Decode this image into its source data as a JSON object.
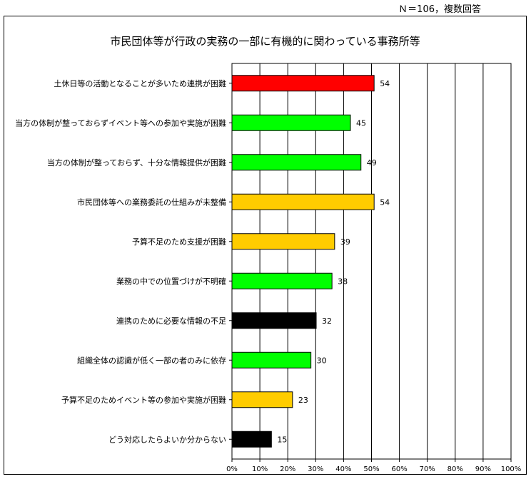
{
  "note": "Ｎ＝106，複数回答",
  "chart_data": {
    "type": "bar",
    "orientation": "horizontal",
    "title": "市民団体等が行政の実務の一部に有機的に関わっている事務所等",
    "categories": [
      "土休日等の活動となることが多いため連携が困難",
      "当方の体制が整っておらずイベント等への参加や実施が困難",
      "当方の体制が整っておらず、十分な情報提供が困難",
      "市民団体等への業務委託の仕組みが未整備",
      "予算不足のため支援が困難",
      "業務の中での位置づけが不明確",
      "連携のために必要な情報の不足",
      "組織全体の認識が低く一部の者のみに依存",
      "予算不足のためイベント等の参加や実施が困難",
      "どう対応したらよいか分からない"
    ],
    "values": [
      54,
      45,
      49,
      54,
      39,
      38,
      32,
      30,
      23,
      15
    ],
    "colors": [
      "#ff0000",
      "#00ff00",
      "#00ff00",
      "#ffcc00",
      "#ffcc00",
      "#00ff00",
      "#000000",
      "#00ff00",
      "#ffcc00",
      "#000000"
    ],
    "total": 106,
    "x_ticks": [
      "0%",
      "10%",
      "20%",
      "30%",
      "40%",
      "50%",
      "60%",
      "70%",
      "80%",
      "90%",
      "100%"
    ],
    "xlim": [
      0,
      100
    ],
    "grid": true
  }
}
